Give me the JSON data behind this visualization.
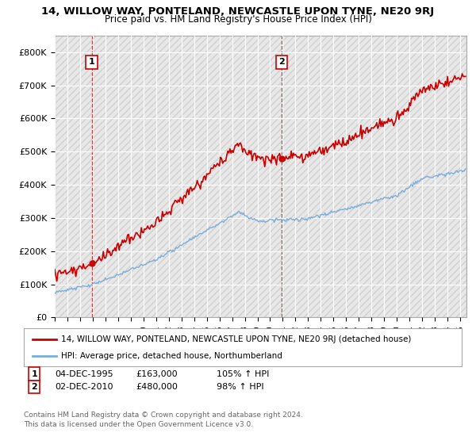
{
  "title": "14, WILLOW WAY, PONTELAND, NEWCASTLE UPON TYNE, NE20 9RJ",
  "subtitle": "Price paid vs. HM Land Registry's House Price Index (HPI)",
  "ylim": [
    0,
    850000
  ],
  "yticks": [
    0,
    100000,
    200000,
    300000,
    400000,
    500000,
    600000,
    700000,
    800000
  ],
  "ytick_labels": [
    "£0",
    "£100K",
    "£200K",
    "£300K",
    "£400K",
    "£500K",
    "£600K",
    "£700K",
    "£800K"
  ],
  "sale1_year": 1995.92,
  "sale1_price": 163000,
  "sale2_year": 2010.92,
  "sale2_price": 480000,
  "property_color": "#cc0000",
  "hpi_color": "#7aaddc",
  "legend_property": "14, WILLOW WAY, PONTELAND, NEWCASTLE UPON TYNE, NE20 9RJ (detached house)",
  "legend_hpi": "HPI: Average price, detached house, Northumberland",
  "footnote1": "Contains HM Land Registry data © Crown copyright and database right 2024.",
  "footnote2": "This data is licensed under the Open Government Licence v3.0.",
  "plot_bg_color": "#e8e8e8",
  "fig_bg_color": "#ffffff",
  "grid_color": "#ffffff",
  "hatch_color": "#d0d0d0"
}
